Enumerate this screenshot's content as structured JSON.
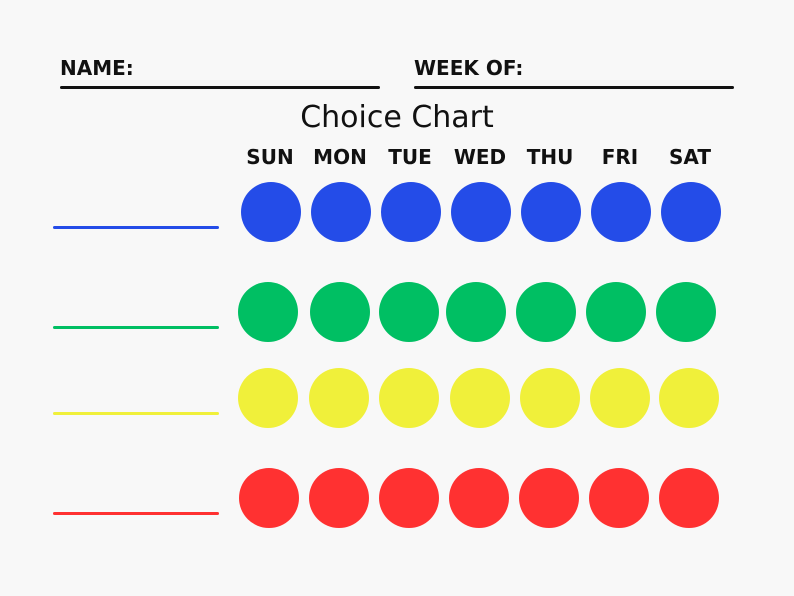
{
  "header": {
    "name_label": "NAME:",
    "week_label": "WEEK OF:"
  },
  "title": "Choice Chart",
  "days": [
    "SUN",
    "MON",
    "TUE",
    "WED",
    "THU",
    "FRI",
    "SAT"
  ],
  "rows": [
    {
      "color": "#244ce8"
    },
    {
      "color": "#00bf63"
    },
    {
      "color": "#f0f03a"
    },
    {
      "color": "#ff3131"
    }
  ]
}
